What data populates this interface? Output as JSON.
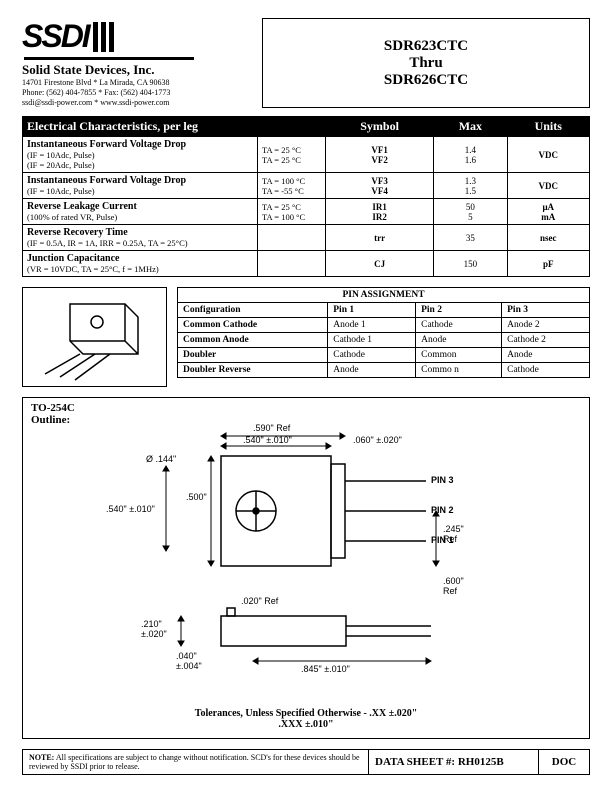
{
  "header": {
    "logo_text": "SSDI",
    "company": "Solid State Devices, Inc.",
    "addr1": "14701 Firestone Blvd * La Mirada, CA 90638",
    "addr2": "Phone: (562) 404-7855 * Fax: (562) 404-1773",
    "addr3": "ssdi@ssdi-power.com * www.ssdi-power.com",
    "title_top": "SDR623CTC",
    "title_mid": "Thru",
    "title_bot": "SDR626CTC"
  },
  "spec": {
    "h_param": "Electrical Characteristics, per leg",
    "h_sym": "Symbol",
    "h_max": "Max",
    "h_units": "Units",
    "rows": [
      {
        "name": "Instantaneous Forward Voltage Drop",
        "cond_sub": "(IF = 10Adc, Pulse)\n(IF = 20Adc, Pulse)",
        "col2": "TA = 25 °C\nTA = 25 °C",
        "sym": "VF1\nVF2",
        "max": "1.4\n1.6",
        "unit": "VDC"
      },
      {
        "name": "Instantaneous Forward Voltage Drop",
        "cond_sub": "(IF = 10Adc, Pulse)",
        "col2": "TA = 100 °C\nTA = -55 °C",
        "sym": "VF3\nVF4",
        "max": "1.3\n1.5",
        "unit": "VDC"
      },
      {
        "name": "Reverse Leakage Current",
        "cond_sub": "(100% of rated VR, Pulse)",
        "col2": "TA = 25 °C\nTA = 100 °C",
        "sym": "IR1\nIR2",
        "max": "50\n5",
        "unit": "μA\nmA"
      },
      {
        "name": "Reverse Recovery Time",
        "cond_sub": "(IF = 0.5A, IR = 1A, IRR = 0.25A, TA = 25°C)",
        "col2": "",
        "sym": "trr",
        "max": "35",
        "unit": "nsec"
      },
      {
        "name": "Junction Capacitance",
        "cond_sub": "(VR = 10VDC, TA = 25°C, f = 1MHz)",
        "col2": "",
        "sym": "CJ",
        "max": "150",
        "unit": "pF"
      }
    ]
  },
  "pins": {
    "header": "PIN ASSIGNMENT",
    "cols": [
      "Configuration",
      "Pin 1",
      "Pin 2",
      "Pin 3"
    ],
    "rows": [
      [
        "Common Cathode",
        "Anode 1",
        "Cathode",
        "Anode 2"
      ],
      [
        "Common Anode",
        "Cathode 1",
        "Anode",
        "Cathode 2"
      ],
      [
        "Doubler",
        "Cathode",
        "Common",
        "Anode"
      ],
      [
        "Doubler Reverse",
        "Anode",
        "Commo n",
        "Cathode"
      ]
    ]
  },
  "outline": {
    "pkg": "TO-254C",
    "label": "Outline:",
    "dims": {
      "d144": "Ø .144\"",
      "ref590": ".590\" Ref",
      "w540": ".540\" ±.010\"",
      "t060": ".060\" ±.020\"",
      "h500": ".500\"",
      "h540": ".540\" ±.010\"",
      "pin3": "PIN 3",
      "pin2": "PIN 2",
      "pin1": "PIN 1",
      "p245": ".245\"\nRef",
      "ref600": ".600\"\nRef",
      "ref020": ".020\" Ref",
      "h210": ".210\"\n±.020\"",
      "t040": ".040\"\n±.004\"",
      "l845": ".845\" ±.010\""
    },
    "tol1": "Tolerances, Unless Specified Otherwise - .XX    ±.020\"",
    "tol2": ".XXX ±.010\""
  },
  "footer": {
    "note_label": "NOTE:",
    "note_text": "All specifications are subject to change without notification. SCD's for these devices should be reviewed by SSDI prior to release.",
    "ds": "DATA SHEET #: RH0125B",
    "doc": "DOC"
  }
}
